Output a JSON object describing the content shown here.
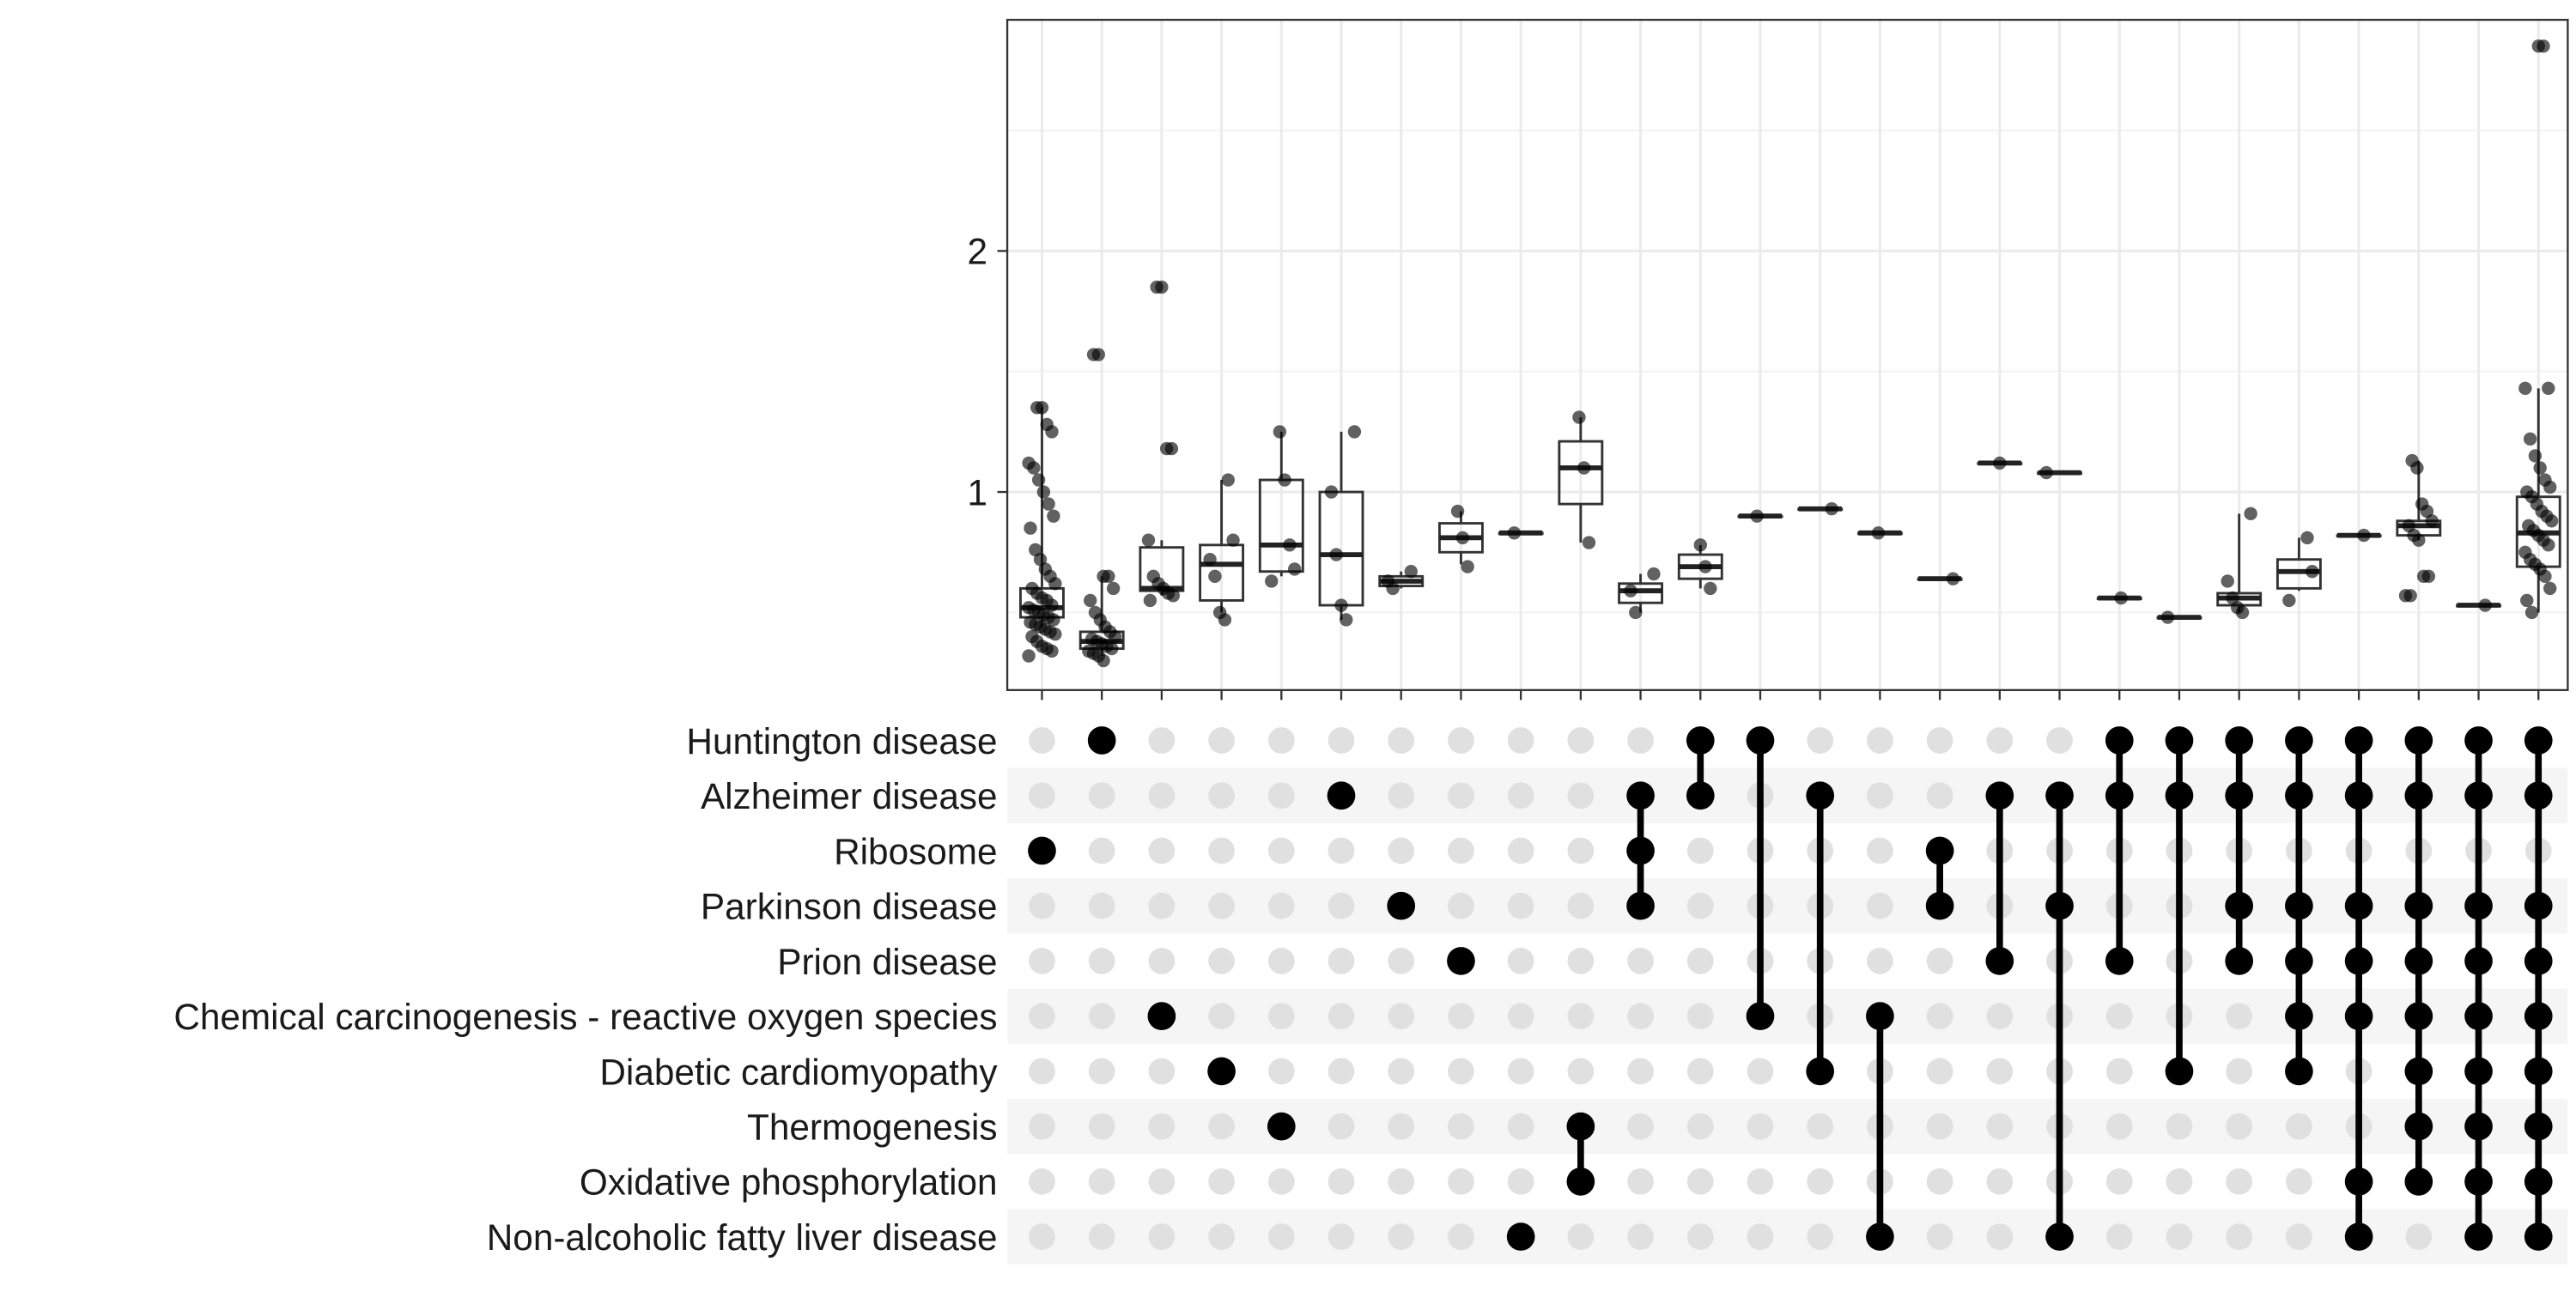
{
  "chart_data": {
    "type": "upset-boxplot",
    "title": "",
    "xlabel": "",
    "ylabel": "",
    "ylim": [
      0.3,
      3.0
    ],
    "yticks": [
      1,
      2
    ],
    "ytick_labels": [
      "1",
      "2"
    ],
    "grid": true,
    "legend": "none",
    "sets": [
      "Huntington disease",
      "Alzheimer disease",
      "Ribosome",
      "Parkinson disease",
      "Prion disease",
      "Chemical carcinogenesis - reactive oxygen species",
      "Diabetic cardiomyopathy",
      "Thermogenesis",
      "Oxidative phosphorylation",
      "Non-alcoholic fatty liver disease"
    ],
    "intersections": [
      {
        "members": [
          2
        ],
        "box": [
          0.44,
          0.48,
          0.52,
          0.6,
          1.35
        ],
        "points": [
          0.32,
          0.34,
          0.35,
          0.36,
          0.38,
          0.4,
          0.41,
          0.42,
          0.43,
          0.44,
          0.45,
          0.46,
          0.47,
          0.48,
          0.49,
          0.5,
          0.51,
          0.52,
          0.53,
          0.55,
          0.56,
          0.58,
          0.6,
          0.62,
          0.65,
          0.68,
          0.72,
          0.76,
          0.85,
          0.9,
          0.95,
          1.0,
          1.05,
          1.1,
          1.12,
          1.25,
          1.28,
          1.35,
          1.35
        ]
      },
      {
        "members": [
          0
        ],
        "box": [
          0.32,
          0.35,
          0.38,
          0.42,
          0.65
        ],
        "points": [
          0.3,
          0.32,
          0.33,
          0.34,
          0.35,
          0.36,
          0.37,
          0.38,
          0.39,
          0.4,
          0.42,
          0.44,
          0.47,
          0.5,
          0.55,
          0.6,
          0.65,
          0.65,
          1.57,
          1.57
        ]
      },
      {
        "members": [
          5
        ],
        "box": [
          0.57,
          0.59,
          0.6,
          0.77,
          0.8
        ],
        "points": [
          0.55,
          0.57,
          0.58,
          0.6,
          0.62,
          0.65,
          0.8,
          1.18,
          1.18,
          1.85,
          1.85
        ]
      },
      {
        "members": [
          6
        ],
        "box": [
          0.5,
          0.55,
          0.7,
          0.78,
          1.05
        ],
        "points": [
          0.47,
          0.5,
          0.65,
          0.72,
          0.8,
          1.05
        ]
      },
      {
        "members": [
          7
        ],
        "box": [
          0.65,
          0.67,
          0.78,
          1.05,
          1.25
        ],
        "points": [
          0.63,
          0.68,
          0.78,
          1.05,
          1.25
        ]
      },
      {
        "members": [
          1
        ],
        "box": [
          0.47,
          0.53,
          0.74,
          1.0,
          1.25
        ],
        "points": [
          0.47,
          0.53,
          0.74,
          1.0,
          1.25
        ]
      },
      {
        "members": [
          3
        ],
        "box": [
          0.6,
          0.61,
          0.63,
          0.65,
          0.67
        ],
        "points": [
          0.6,
          0.63,
          0.67
        ]
      },
      {
        "members": [
          4
        ],
        "box": [
          0.7,
          0.75,
          0.81,
          0.87,
          0.92
        ],
        "points": [
          0.69,
          0.81,
          0.92
        ]
      },
      {
        "members": [
          9
        ],
        "box": [
          0.83,
          0.83,
          0.83,
          0.83,
          0.83
        ],
        "points": [
          0.83
        ]
      },
      {
        "members": [
          7,
          8
        ],
        "box": [
          0.79,
          0.95,
          1.1,
          1.21,
          1.31
        ],
        "points": [
          0.79,
          1.1,
          1.31
        ]
      },
      {
        "members": [
          1,
          2,
          3
        ],
        "box": [
          0.5,
          0.54,
          0.59,
          0.62,
          0.66
        ],
        "points": [
          0.5,
          0.59,
          0.66
        ]
      },
      {
        "members": [
          0,
          1
        ],
        "box": [
          0.6,
          0.64,
          0.69,
          0.74,
          0.78
        ],
        "points": [
          0.6,
          0.69,
          0.78
        ]
      },
      {
        "members": [
          0,
          5
        ],
        "box": [
          0.9,
          0.9,
          0.9,
          0.9,
          0.9
        ],
        "points": [
          0.9
        ]
      },
      {
        "members": [
          1,
          6
        ],
        "box": [
          0.93,
          0.93,
          0.93,
          0.93,
          0.93
        ],
        "points": [
          0.93
        ]
      },
      {
        "members": [
          5,
          9
        ],
        "box": [
          0.83,
          0.83,
          0.83,
          0.83,
          0.83
        ],
        "points": [
          0.83
        ]
      },
      {
        "members": [
          2,
          3
        ],
        "box": [
          0.64,
          0.64,
          0.64,
          0.64,
          0.64
        ],
        "points": [
          0.64
        ]
      },
      {
        "members": [
          1,
          4
        ],
        "box": [
          1.12,
          1.12,
          1.12,
          1.12,
          1.12
        ],
        "points": [
          1.12
        ]
      },
      {
        "members": [
          1,
          3,
          9
        ],
        "box": [
          1.08,
          1.08,
          1.08,
          1.08,
          1.08
        ],
        "points": [
          1.08
        ]
      },
      {
        "members": [
          0,
          1,
          4
        ],
        "box": [
          0.56,
          0.56,
          0.56,
          0.56,
          0.56
        ],
        "points": [
          0.56
        ]
      },
      {
        "members": [
          0,
          1,
          6
        ],
        "box": [
          0.48,
          0.48,
          0.48,
          0.48,
          0.48
        ],
        "points": [
          0.48
        ]
      },
      {
        "members": [
          0,
          1,
          3,
          4
        ],
        "box": [
          0.5,
          0.53,
          0.56,
          0.58,
          0.91
        ],
        "points": [
          0.5,
          0.52,
          0.56,
          0.63,
          0.91
        ]
      },
      {
        "members": [
          0,
          1,
          3,
          4,
          5,
          6
        ],
        "box": [
          0.59,
          0.6,
          0.67,
          0.72,
          0.81
        ],
        "points": [
          0.55,
          0.67,
          0.81
        ]
      },
      {
        "members": [
          0,
          1,
          3,
          4,
          5,
          8,
          9
        ],
        "box": [
          0.82,
          0.82,
          0.82,
          0.82,
          0.82
        ],
        "points": [
          0.82
        ]
      },
      {
        "members": [
          0,
          1,
          3,
          4,
          5,
          6,
          7,
          8
        ],
        "box": [
          0.8,
          0.82,
          0.86,
          0.88,
          1.13
        ],
        "points": [
          0.57,
          0.57,
          0.65,
          0.65,
          0.8,
          0.82,
          0.86,
          0.88,
          0.92,
          0.95,
          1.1,
          1.13
        ]
      },
      {
        "members": [
          0,
          1,
          3,
          4,
          5,
          6,
          7,
          8,
          9
        ],
        "box": [
          0.53,
          0.53,
          0.53,
          0.53,
          0.53
        ],
        "points": [
          0.53
        ]
      },
      {
        "members": [
          0,
          1,
          3,
          4,
          5,
          6,
          7,
          8,
          9
        ],
        "box": [
          0.5,
          0.69,
          0.83,
          0.98,
          1.43
        ],
        "points": [
          0.5,
          0.55,
          0.6,
          0.65,
          0.68,
          0.7,
          0.72,
          0.75,
          0.78,
          0.8,
          0.82,
          0.84,
          0.86,
          0.88,
          0.9,
          0.92,
          0.95,
          0.98,
          1.0,
          1.02,
          1.05,
          1.1,
          1.15,
          1.22,
          1.43,
          1.43,
          2.85,
          2.85
        ]
      }
    ]
  }
}
